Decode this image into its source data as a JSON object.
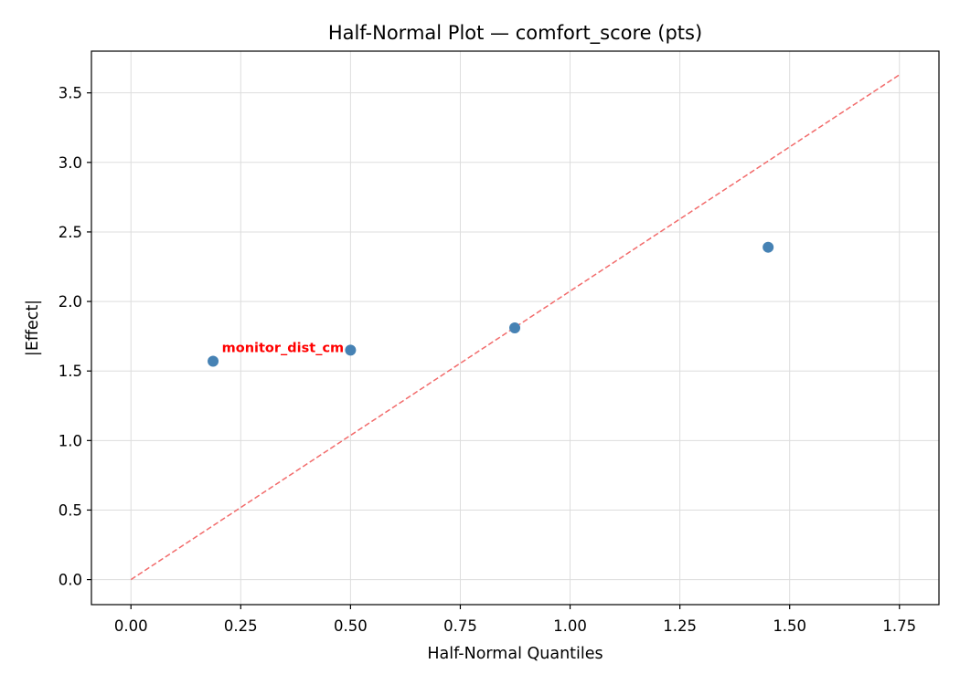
{
  "chart_data": {
    "type": "scatter",
    "title": "Half-Normal Plot — comfort_score (pts)",
    "xlabel": "Half-Normal Quantiles",
    "ylabel": "|Effect|",
    "xlim": [
      -0.09,
      1.84
    ],
    "ylim": [
      -0.18,
      3.8
    ],
    "xticks": [
      0.0,
      0.25,
      0.5,
      0.75,
      1.0,
      1.25,
      1.5,
      1.75
    ],
    "xtick_labels": [
      "0.00",
      "0.25",
      "0.50",
      "0.75",
      "1.00",
      "1.25",
      "1.50",
      "1.75"
    ],
    "yticks": [
      0.0,
      0.5,
      1.0,
      1.5,
      2.0,
      2.5,
      3.0,
      3.5
    ],
    "ytick_labels": [
      "0.0",
      "0.5",
      "1.0",
      "1.5",
      "2.0",
      "2.5",
      "3.0",
      "3.5"
    ],
    "grid": true,
    "points": [
      {
        "x": 0.187,
        "y": 1.57
      },
      {
        "x": 0.5,
        "y": 1.65
      },
      {
        "x": 0.874,
        "y": 1.81
      },
      {
        "x": 1.451,
        "y": 2.39
      }
    ],
    "reference_line": {
      "x": [
        0.0,
        1.75
      ],
      "y": [
        0.0,
        3.63
      ],
      "style": "dashed"
    },
    "annotations": [
      {
        "text": "monitor_dist_cm",
        "x": 0.207,
        "y": 1.67
      }
    ],
    "colors": {
      "points": "#4682b4",
      "reference_line": "#f26b6b",
      "annotation": "#ff0000",
      "grid": "#dddddd"
    }
  }
}
